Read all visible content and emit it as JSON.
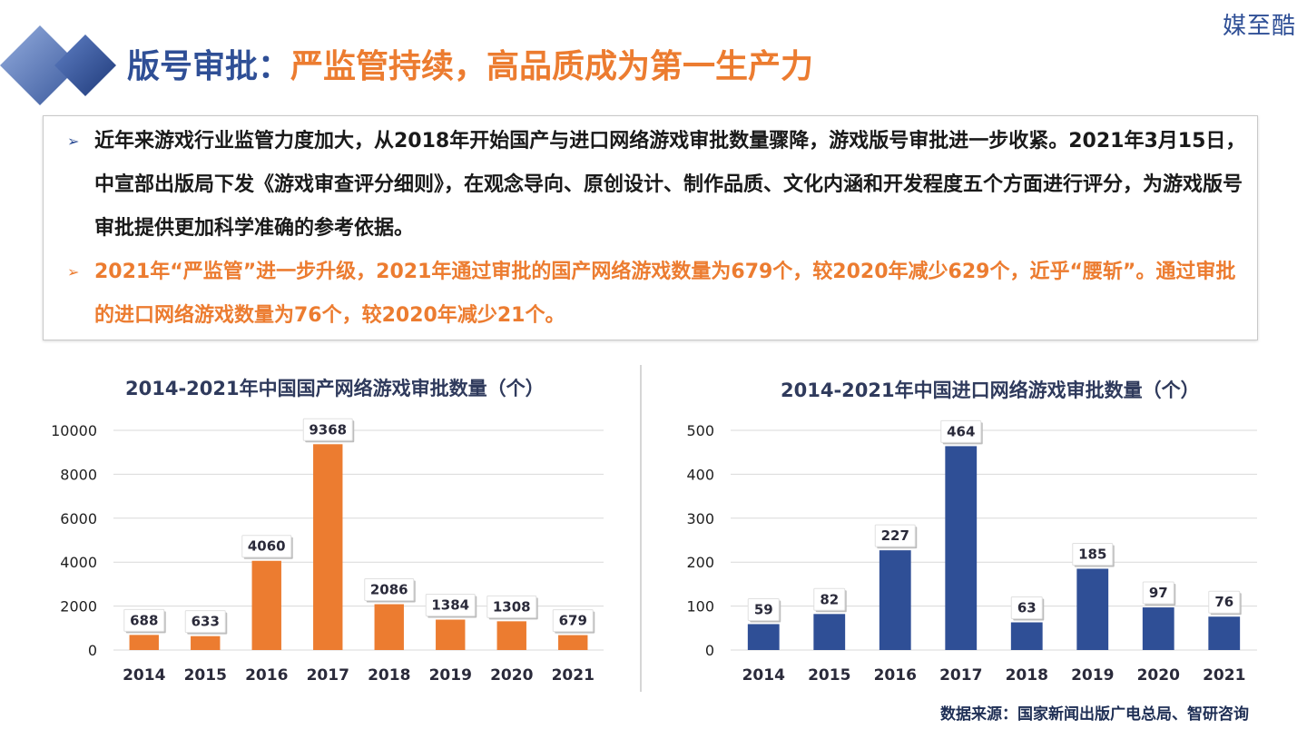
{
  "brand": "媒至酷",
  "header": {
    "title_blue": "版号审批：",
    "title_orange": "严监管持续，高品质成为第一生产力"
  },
  "callout": {
    "bullet_glyph": "➢",
    "para1": "近年来游戏行业监管力度加大，从2018年开始国产与进口网络游戏审批数量骤降，游戏版号审批进一步收紧。2021年3月15日，中宣部出版局下发《游戏审查评分细则》，在观念导向、原创设计、制作品质、文化内涵和开发程度五个方面进行评分，为游戏版号审批提供更加科学准确的参考依据。",
    "para2": "2021年“严监管”进一步升级，2021年通过审批的国产网络游戏数量为679个，较2020年减少629个，近乎“腰斩”。通过审批的进口网络游戏数量为76个，较2020年减少21个。"
  },
  "source": "数据来源：国家新闻出版广电总局、智研咨询",
  "colors": {
    "blue": "#2f4f96",
    "orange": "#ec7c30"
  },
  "chart_data": [
    {
      "type": "bar",
      "title": "2014-2021年中国国产网络游戏审批数量（个）",
      "categories": [
        "2014",
        "2015",
        "2016",
        "2017",
        "2018",
        "2019",
        "2020",
        "2021"
      ],
      "values": [
        688,
        633,
        4060,
        9368,
        2086,
        1384,
        1308,
        679
      ],
      "yticks": [
        0,
        2000,
        4000,
        6000,
        8000,
        10000
      ],
      "ylim": [
        0,
        10000
      ],
      "color": "#ec7c30",
      "grid": true
    },
    {
      "type": "bar",
      "title": "2014-2021年中国进口网络游戏审批数量（个）",
      "categories": [
        "2014",
        "2015",
        "2016",
        "2017",
        "2018",
        "2019",
        "2020",
        "2021"
      ],
      "values": [
        59,
        82,
        227,
        464,
        63,
        185,
        97,
        76
      ],
      "yticks": [
        0,
        100,
        200,
        300,
        400,
        500
      ],
      "ylim": [
        0,
        500
      ],
      "color": "#2f4f96",
      "grid": true
    }
  ]
}
